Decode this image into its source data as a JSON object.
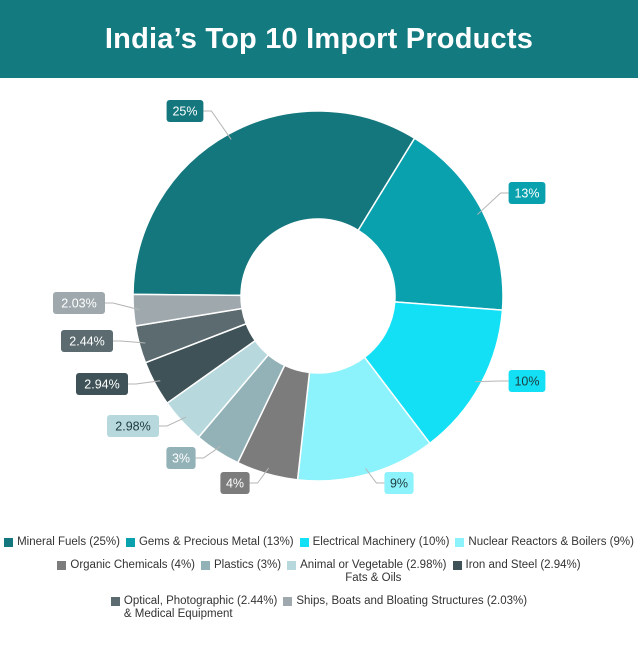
{
  "header": {
    "title": "India’s Top 10 Import Products"
  },
  "chart_data": {
    "type": "pie",
    "subtype": "donut",
    "title": "India’s Top 10 Import Products",
    "slices": [
      {
        "label_line1": "Mineral Fuels (25%)",
        "label_line2": "",
        "value": 25,
        "data_label": "25%",
        "color": "#13777d"
      },
      {
        "label_line1": "Gems & Precious Metal (13%)",
        "label_line2": "",
        "value": 13,
        "data_label": "13%",
        "color": "#0aa1ae"
      },
      {
        "label_line1": "Electrical Machinery (10%)",
        "label_line2": "",
        "value": 10,
        "data_label": "10%",
        "color": "#13e0f4"
      },
      {
        "label_line1": "Nuclear Reactors & Boilers (9%)",
        "label_line2": "",
        "value": 9,
        "data_label": "9%",
        "color": "#8cf2fb"
      },
      {
        "label_line1": "Organic Chemicals (4%)",
        "label_line2": "",
        "value": 4,
        "data_label": "4%",
        "color": "#7c7c7c"
      },
      {
        "label_line1": "Plastics (3%)",
        "label_line2": "",
        "value": 3,
        "data_label": "3%",
        "color": "#93b2b7"
      },
      {
        "label_line1": "Animal or Vegetable (2.98%)",
        "label_line2": "Fats & Oils",
        "value": 2.98,
        "data_label": "2.98%",
        "color": "#b7d9de"
      },
      {
        "label_line1": "Iron and Steel (2.94%)",
        "label_line2": "",
        "value": 2.94,
        "data_label": "2.94%",
        "color": "#3f5257"
      },
      {
        "label_line1": "Optical, Photographic (2.44%)",
        "label_line2": "& Medical Equipment",
        "value": 2.44,
        "data_label": "2.44%",
        "color": "#5b6b70"
      },
      {
        "label_line1": "Ships, Boats and Bloating Structures (2.03%)",
        "label_line2": "",
        "value": 2.03,
        "data_label": "2.03%",
        "color": "#9fa9ad"
      }
    ],
    "legend_position": "bottom"
  }
}
